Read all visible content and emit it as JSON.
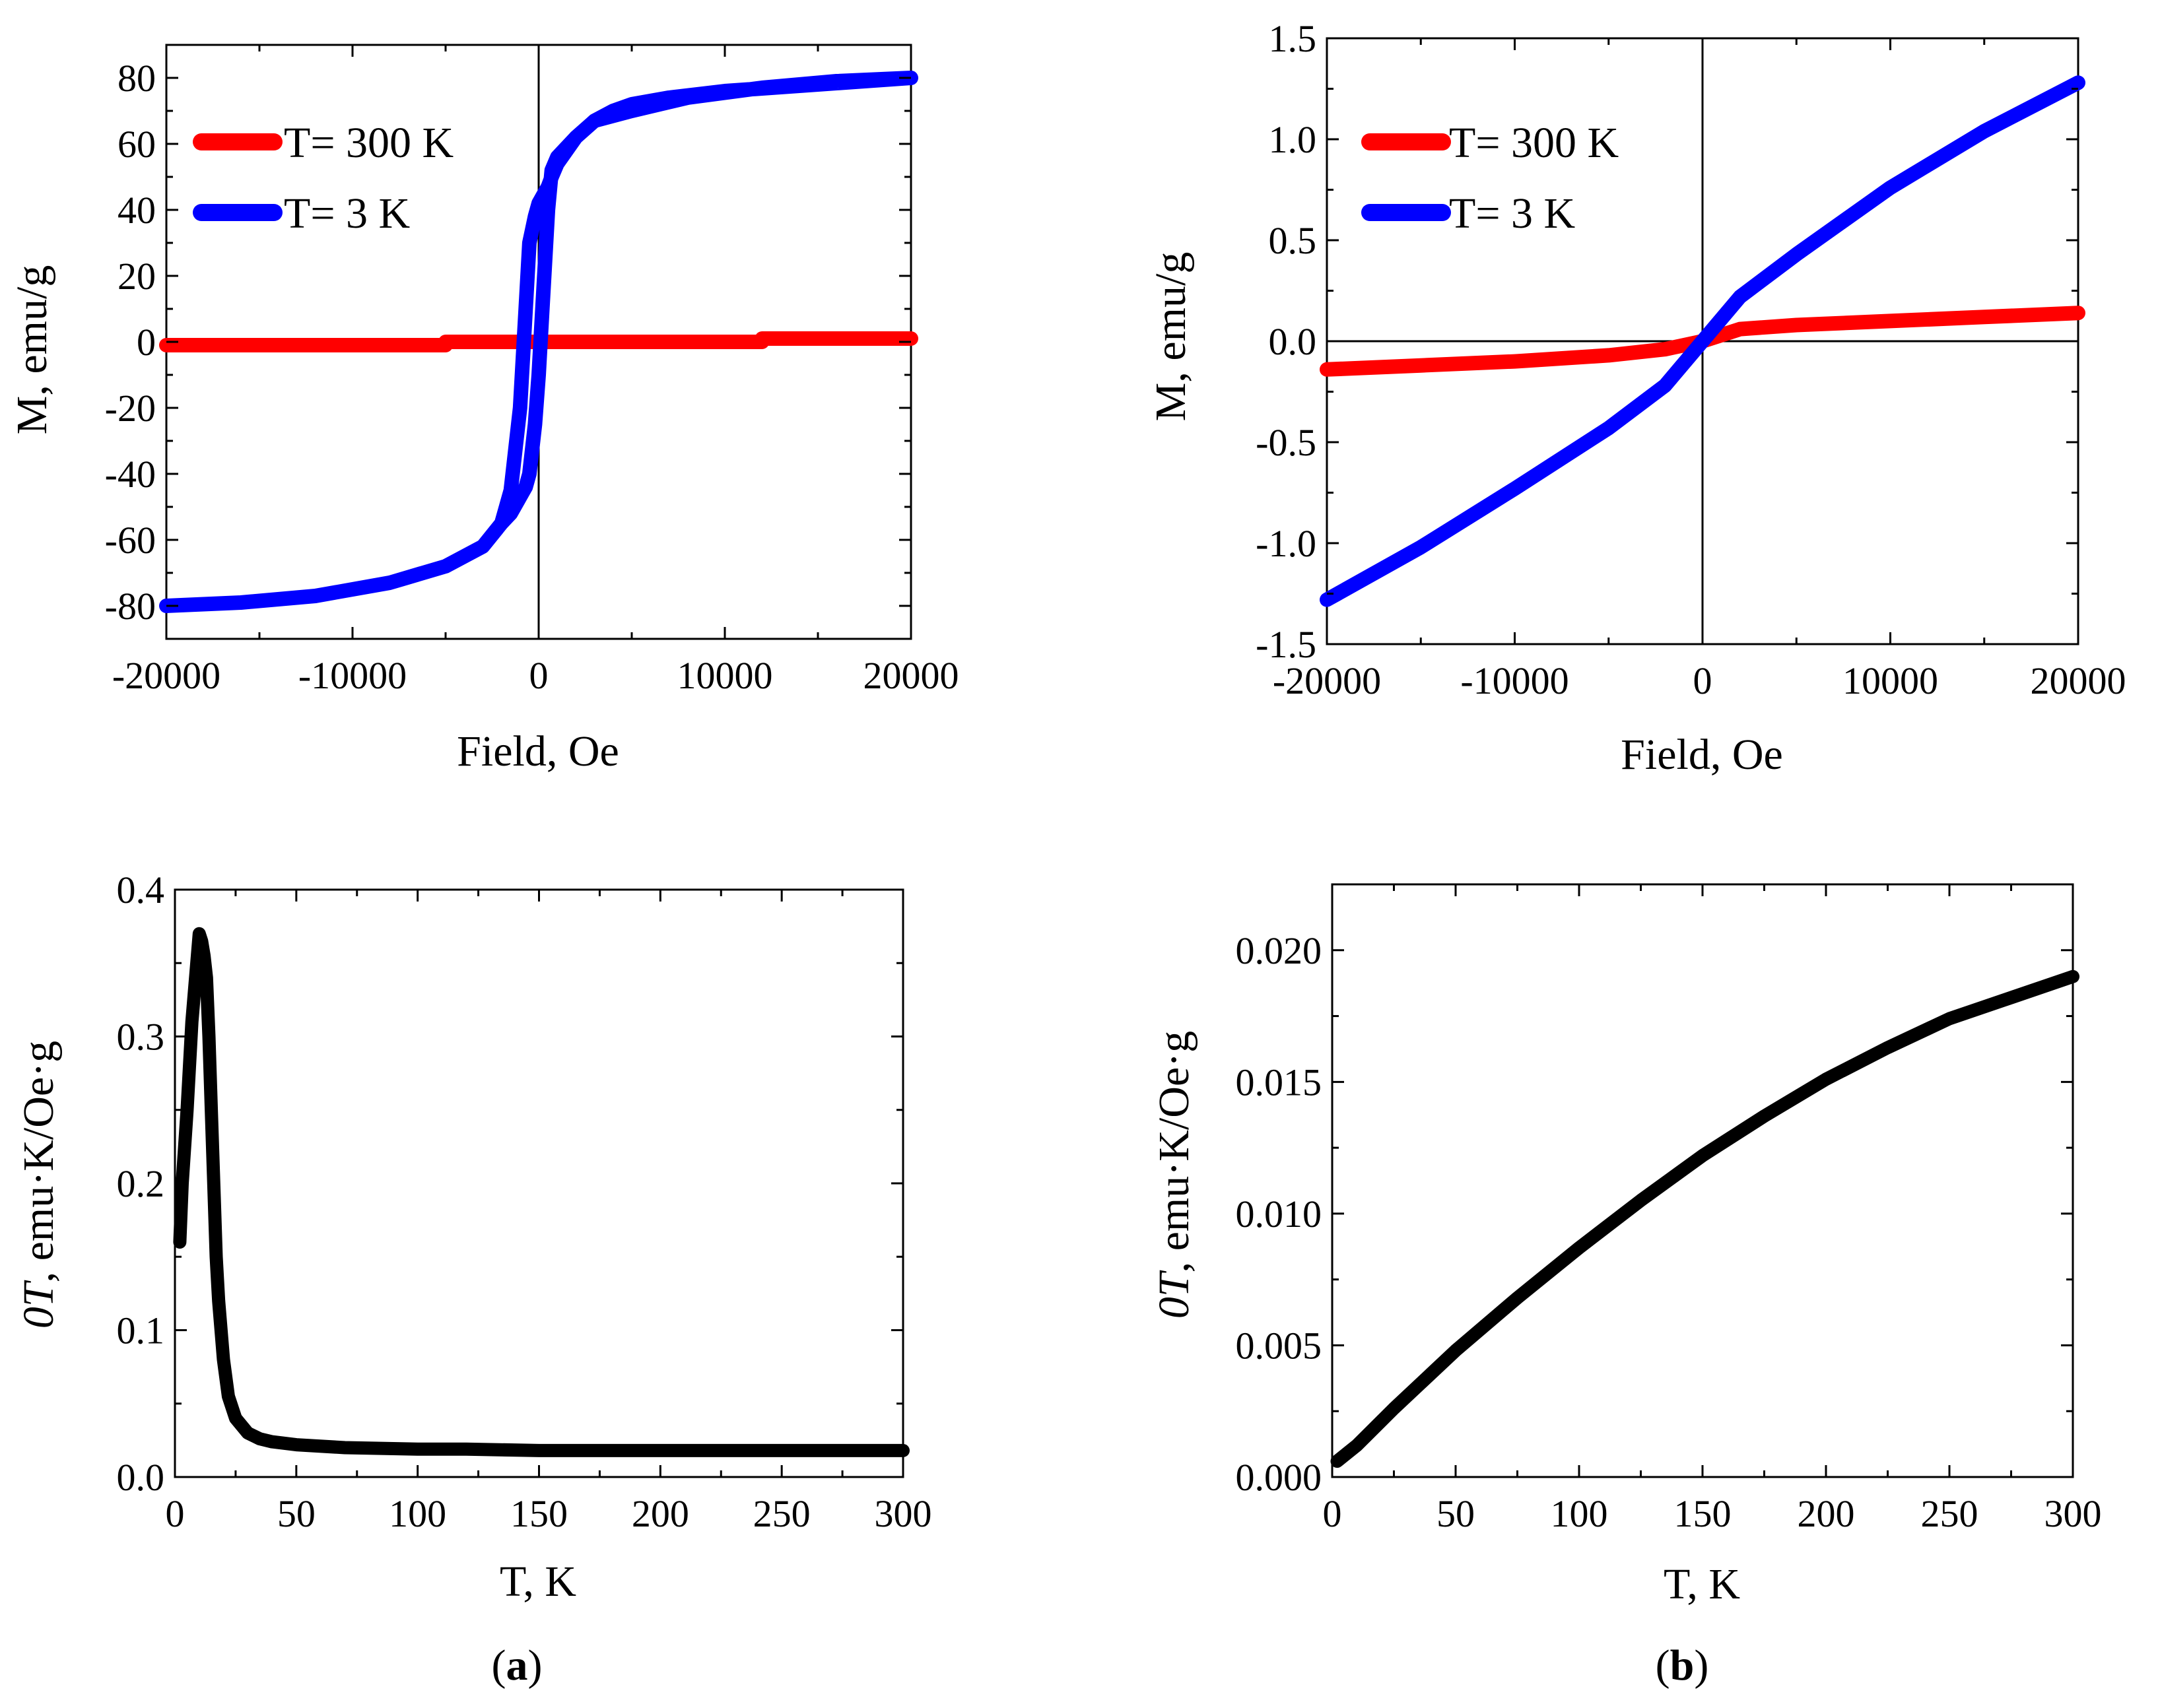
{
  "figure": {
    "panel_labels": [
      {
        "open": "(",
        "letter": "a",
        "close": ")"
      },
      {
        "open": "(",
        "letter": "b",
        "close": ")"
      }
    ]
  },
  "chart_data": [
    {
      "id": "a-top",
      "type": "line",
      "xlabel": "Field, Oe",
      "ylabel": "M, emu/g",
      "xlim": [
        -20000,
        20000
      ],
      "ylim": [
        -90,
        90
      ],
      "xticks": [
        -20000,
        -10000,
        0,
        10000,
        20000
      ],
      "xtick_labels": [
        "-20000",
        "-10000",
        "0",
        "10000",
        "20000"
      ],
      "yticks": [
        -80,
        -60,
        -40,
        -20,
        0,
        20,
        40,
        60,
        80
      ],
      "ytick_labels": [
        "-80",
        "-60",
        "-40",
        "-20",
        "0",
        "20",
        "40",
        "60",
        "80"
      ],
      "legend": "top-left",
      "zero_lines": {
        "x": true,
        "y": false
      },
      "series": [
        {
          "name": "T= 300 K",
          "color": "#ff0000",
          "x": [
            -20000,
            -5000,
            -5000,
            12000,
            12000,
            20000
          ],
          "y": [
            -1,
            -1,
            0,
            0,
            1,
            1
          ]
        },
        {
          "name": "T= 3 K",
          "color": "#0000ff",
          "x": [
            20000,
            15000,
            10000,
            7000,
            5000,
            4000,
            3000,
            2000,
            1500,
            1000,
            700,
            500,
            200,
            0,
            -200,
            -500,
            -700,
            -1000,
            -1500,
            -2000,
            -3000,
            -5000,
            -8000,
            -12000,
            -16000,
            -20000,
            -16000,
            -12000,
            -8000,
            -5000,
            -3000,
            -2000,
            -1500,
            -1000,
            -700,
            -500,
            -200,
            0,
            200,
            500,
            700,
            1000,
            1500,
            2000,
            3000,
            5000,
            8000,
            12000,
            16000,
            20000
          ],
          "y": [
            80,
            78,
            76,
            74,
            72,
            70,
            67,
            62,
            58,
            54,
            50,
            47,
            44,
            42,
            38,
            30,
            10,
            -20,
            -45,
            -55,
            -62,
            -68,
            -73,
            -77,
            -79,
            -80,
            -79,
            -77,
            -73,
            -68,
            -62,
            -55,
            -52,
            -47,
            -44,
            -40,
            -25,
            -10,
            10,
            40,
            52,
            56,
            59,
            62,
            67,
            70,
            74,
            77,
            79,
            80
          ]
        }
      ]
    },
    {
      "id": "b-top",
      "type": "line",
      "xlabel": "Field, Oe",
      "ylabel": "M, emu/g",
      "xlim": [
        -20000,
        20000
      ],
      "ylim": [
        -1.5,
        1.5
      ],
      "xticks": [
        -20000,
        -10000,
        0,
        10000,
        20000
      ],
      "xtick_labels": [
        "-20000",
        "-10000",
        "0",
        "10000",
        "20000"
      ],
      "yticks": [
        -1.5,
        -1.0,
        -0.5,
        0.0,
        0.5,
        1.0,
        1.5
      ],
      "ytick_labels": [
        "-1.5",
        "-1.0",
        "-0.5",
        "0.0",
        "0.5",
        "1.0",
        "1.5"
      ],
      "legend": "top-left",
      "zero_lines": {
        "x": true,
        "y": true
      },
      "series": [
        {
          "name": "T= 300 K",
          "color": "#ff0000",
          "x": [
            -20000,
            -15000,
            -10000,
            -5000,
            -2000,
            0,
            2000,
            5000,
            10000,
            15000,
            20000
          ],
          "y": [
            -0.14,
            -0.12,
            -0.1,
            -0.07,
            -0.04,
            0.0,
            0.06,
            0.08,
            0.1,
            0.12,
            0.14
          ]
        },
        {
          "name": "T= 3 K",
          "color": "#0000ff",
          "x": [
            -20000,
            -15000,
            -10000,
            -5000,
            -2000,
            0,
            2000,
            5000,
            10000,
            15000,
            20000
          ],
          "y": [
            -1.28,
            -1.02,
            -0.73,
            -0.43,
            -0.22,
            0.0,
            0.22,
            0.43,
            0.76,
            1.04,
            1.28
          ]
        }
      ]
    },
    {
      "id": "a-bottom",
      "type": "line",
      "xlabel": "T, K",
      "ylabel_italic": "0T",
      "ylabel_rest": ", emu·K/Oe·g",
      "xlim": [
        0,
        300
      ],
      "ylim": [
        0,
        0.4
      ],
      "xticks": [
        0,
        50,
        100,
        150,
        200,
        250,
        300
      ],
      "xtick_labels": [
        "0",
        "50",
        "100",
        "150",
        "200",
        "250",
        "300"
      ],
      "yticks": [
        0.0,
        0.1,
        0.2,
        0.3,
        0.4
      ],
      "ytick_labels": [
        "0.0",
        "0.1",
        "0.2",
        "0.3",
        "0.4"
      ],
      "series": [
        {
          "name": "",
          "color": "#000000",
          "x": [
            2,
            3,
            5,
            7,
            9,
            10,
            11,
            12,
            13,
            14,
            15,
            16,
            17,
            18,
            20,
            22,
            25,
            30,
            35,
            40,
            50,
            70,
            100,
            120,
            150,
            200,
            250,
            300
          ],
          "y": [
            0.16,
            0.2,
            0.25,
            0.31,
            0.35,
            0.37,
            0.365,
            0.355,
            0.34,
            0.3,
            0.25,
            0.2,
            0.15,
            0.12,
            0.08,
            0.055,
            0.04,
            0.03,
            0.026,
            0.024,
            0.022,
            0.02,
            0.019,
            0.019,
            0.018,
            0.018,
            0.018,
            0.018
          ]
        }
      ]
    },
    {
      "id": "b-bottom",
      "type": "line",
      "xlabel": "T, K",
      "ylabel_italic": "0T",
      "ylabel_rest": ", emu·K/Oe·g",
      "xlim": [
        0,
        300
      ],
      "ylim": [
        0,
        0.0225
      ],
      "xticks": [
        0,
        50,
        100,
        150,
        200,
        250,
        300
      ],
      "xtick_labels": [
        "0",
        "50",
        "100",
        "150",
        "200",
        "250",
        "300"
      ],
      "yticks": [
        0.0,
        0.005,
        0.01,
        0.015,
        0.02
      ],
      "ytick_labels": [
        "0.000",
        "0.005",
        "0.010",
        "0.015",
        "0.020"
      ],
      "series": [
        {
          "name": "",
          "color": "#000000",
          "x": [
            2,
            10,
            25,
            50,
            75,
            100,
            125,
            150,
            175,
            200,
            225,
            250,
            275,
            300
          ],
          "y": [
            0.0006,
            0.0012,
            0.0026,
            0.0048,
            0.0068,
            0.0087,
            0.0105,
            0.0122,
            0.0137,
            0.0151,
            0.0163,
            0.0174,
            0.0182,
            0.019
          ]
        }
      ]
    }
  ]
}
